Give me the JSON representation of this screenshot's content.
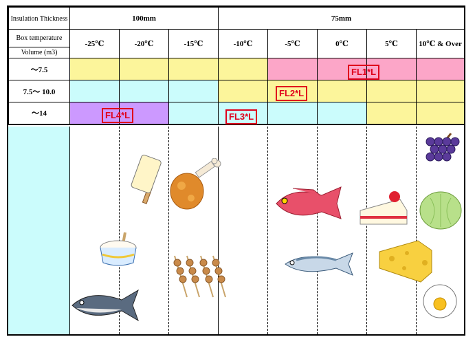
{
  "header": {
    "insulation_label": "Insulation Thickness",
    "thickness_100": "100mm",
    "thickness_75": "75mm",
    "box_temp_label": "Box temperature",
    "volume_label": "Volume (m3)",
    "temps": [
      "-25℃",
      "-20℃",
      "-15℃",
      "-10℃",
      "-5℃",
      "0℃",
      "5℃",
      "10℃ & Over"
    ]
  },
  "rows": [
    {
      "label": "～7.5"
    },
    {
      "label": "7.5～ 10.0"
    },
    {
      "label": "～14"
    }
  ],
  "models": {
    "fl1": "FL1*L",
    "fl2": "FL2*L",
    "fl3": "FL3*L",
    "fl4": "FL4*L"
  },
  "colors": {
    "yellow": "#fcf59b",
    "pink": "#fca6c8",
    "cyan": "#cbfcfc",
    "purple": "#cc99ff",
    "label_red": "#e0001b"
  },
  "food_icons": [
    "ice-cream-bar-icon",
    "fried-chicken-icon",
    "ice-cream-cup-icon",
    "yakitori-icon",
    "tuna-icon",
    "red-snapper-icon",
    "mackerel-icon",
    "cake-icon",
    "cheese-icon",
    "grapes-icon",
    "lettuce-icon",
    "egg-icon"
  ]
}
